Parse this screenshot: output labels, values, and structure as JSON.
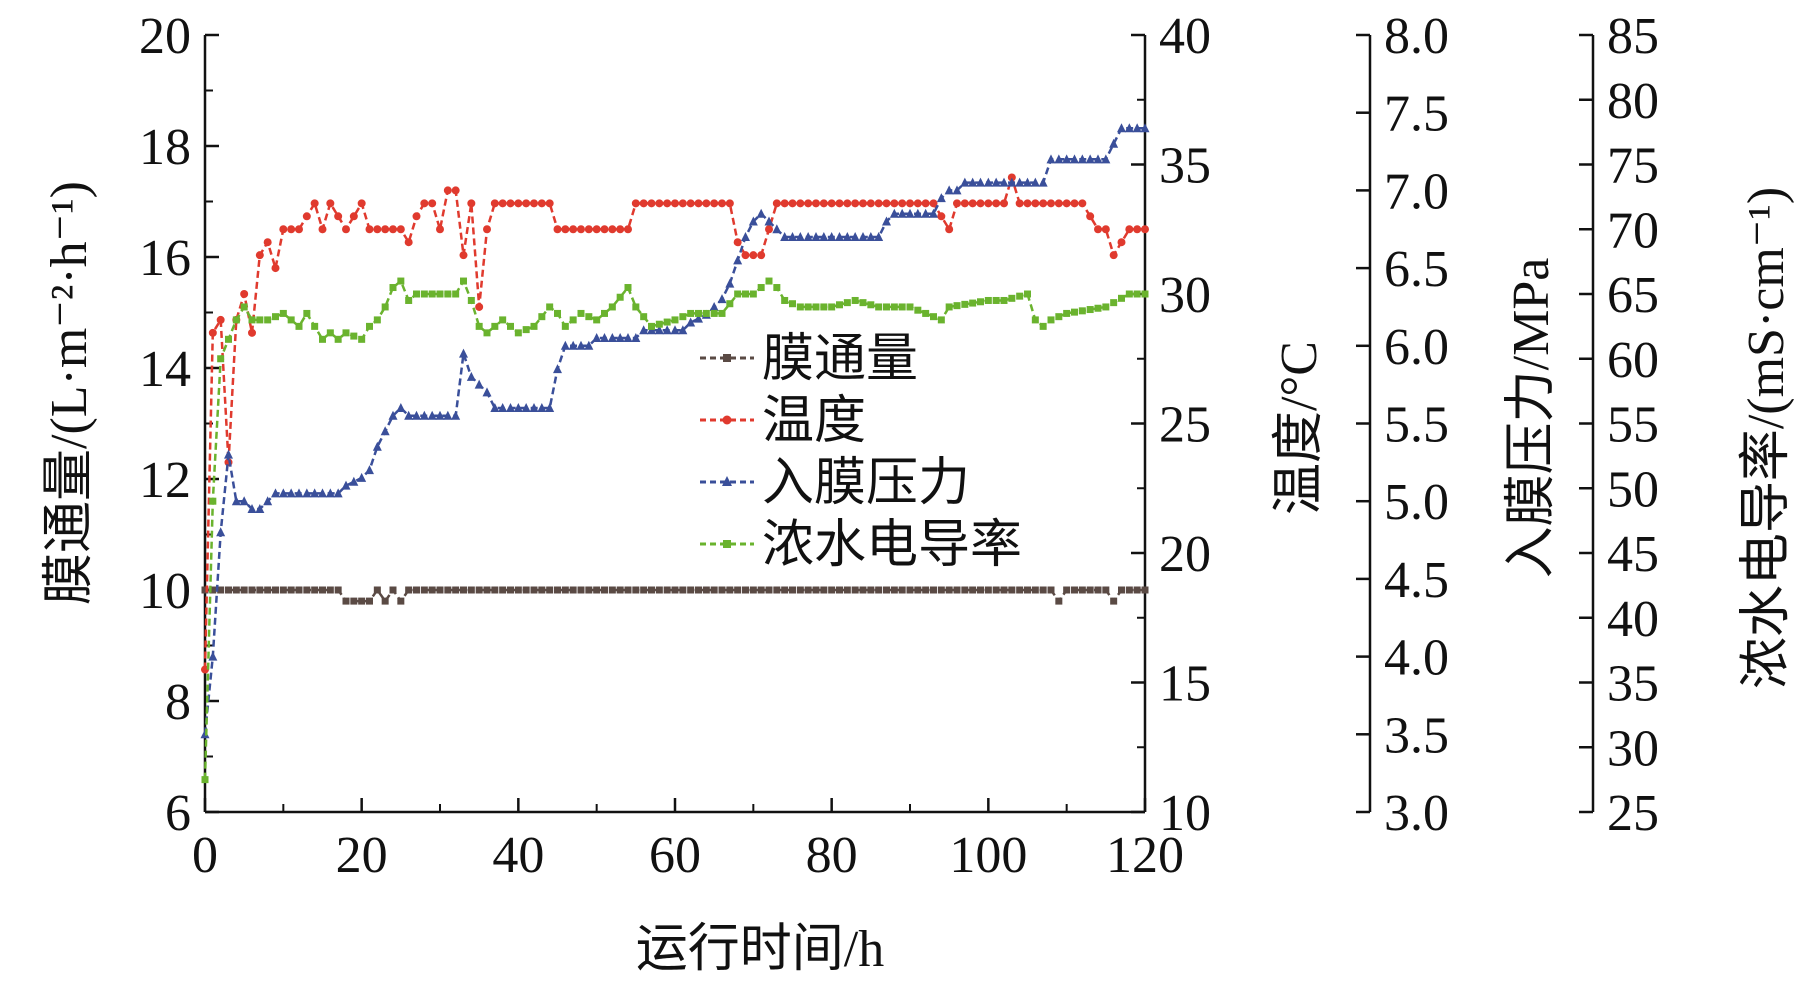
{
  "chart_data": {
    "type": "line",
    "xlabel": "运行时间/h",
    "xlim": [
      0,
      120
    ],
    "xticks": [
      0,
      20,
      40,
      60,
      80,
      100,
      120
    ],
    "axes": [
      {
        "id": "flux",
        "label": "膜通量/(L·m⁻²·h⁻¹)",
        "range": [
          6,
          20
        ],
        "ticks": [
          6,
          8,
          10,
          12,
          14,
          16,
          18,
          20
        ]
      },
      {
        "id": "temp",
        "label": "温度/°C",
        "range": [
          10,
          40
        ],
        "ticks": [
          10,
          15,
          20,
          25,
          30,
          35,
          40
        ]
      },
      {
        "id": "pressure",
        "label": "入膜压力/MPa",
        "range": [
          3.0,
          8.0
        ],
        "ticks": [
          "3.0",
          "3.5",
          "4.0",
          "4.5",
          "5.0",
          "5.5",
          "6.0",
          "6.5",
          "7.0",
          "7.5",
          "8.0"
        ]
      },
      {
        "id": "cond",
        "label": "浓水电导率/(mS·cm⁻¹)",
        "range": [
          25,
          85
        ],
        "ticks": [
          25,
          30,
          35,
          40,
          45,
          50,
          55,
          60,
          65,
          70,
          75,
          80,
          85
        ]
      }
    ],
    "legend_position": "center",
    "series": [
      {
        "name": "膜通量",
        "axis": "flux",
        "color": "#5a4a44",
        "marker": "square",
        "x": [
          0,
          17,
          18,
          21,
          22,
          23,
          24,
          25,
          26,
          108,
          109,
          110,
          115,
          116,
          117,
          120
        ],
        "y": [
          10,
          10,
          9.8,
          9.8,
          10,
          9.8,
          10,
          9.8,
          10,
          10,
          9.8,
          10,
          10,
          9.8,
          10,
          10
        ]
      },
      {
        "name": "温度",
        "axis": "temp",
        "color": "#e03a2e",
        "marker": "circle",
        "x": [
          0,
          1,
          2,
          3,
          4,
          5,
          6,
          7,
          8,
          9,
          10,
          12,
          13,
          14,
          15,
          16,
          17,
          18,
          20,
          21,
          25,
          26,
          27,
          28,
          29,
          30,
          31,
          32,
          33,
          34,
          35,
          36,
          37,
          38,
          44,
          45,
          54,
          55,
          67,
          68,
          69,
          70,
          71,
          72,
          73,
          92,
          93,
          94,
          95,
          96,
          102,
          103,
          104,
          105,
          106,
          112,
          113,
          114,
          115,
          116,
          117,
          118,
          120
        ],
        "y": [
          15.5,
          28.5,
          29,
          23.5,
          29,
          30,
          28.5,
          31.5,
          32,
          31,
          32.5,
          32.5,
          33,
          33.5,
          32.5,
          33.5,
          33,
          32.5,
          33.5,
          32.5,
          32.5,
          32,
          33,
          33.5,
          33.5,
          32.5,
          34,
          34,
          31.5,
          33.5,
          29.5,
          32.5,
          33.5,
          33.5,
          33.5,
          32.5,
          32.5,
          33.5,
          33.5,
          32,
          31.5,
          31.5,
          31.5,
          32.5,
          33.5,
          33.5,
          33.5,
          33,
          32.5,
          33.5,
          33.5,
          34.5,
          33.5,
          33.5,
          33.5,
          33.5,
          33,
          32.5,
          32.5,
          31.5,
          32,
          32.5,
          32.5
        ]
      },
      {
        "name": "入膜压力",
        "axis": "pressure",
        "color": "#3a4f9a",
        "marker": "triangle",
        "x": [
          0,
          1,
          2,
          3,
          4,
          5,
          6,
          7,
          8,
          9,
          10,
          17,
          18,
          20,
          21,
          22,
          23,
          24,
          25,
          26,
          32,
          33,
          34,
          35,
          36,
          37,
          44,
          45,
          46,
          49,
          50,
          55,
          56,
          60,
          61,
          62,
          64,
          65,
          66,
          67,
          68,
          69,
          70,
          71,
          72,
          73,
          74,
          75,
          86,
          87,
          88,
          93,
          94,
          95,
          96,
          97,
          98,
          107,
          108,
          110,
          111,
          115,
          116,
          117,
          120
        ],
        "y": [
          3.5,
          4.0,
          4.8,
          5.3,
          5.0,
          5.0,
          4.95,
          4.95,
          5.0,
          5.05,
          5.05,
          5.05,
          5.1,
          5.15,
          5.2,
          5.35,
          5.45,
          5.55,
          5.6,
          5.55,
          5.55,
          5.95,
          5.8,
          5.75,
          5.7,
          5.6,
          5.6,
          5.85,
          6.0,
          6.0,
          6.05,
          6.05,
          6.1,
          6.1,
          6.1,
          6.15,
          6.2,
          6.25,
          6.3,
          6.4,
          6.55,
          6.7,
          6.8,
          6.85,
          6.8,
          6.75,
          6.7,
          6.7,
          6.7,
          6.8,
          6.85,
          6.85,
          6.95,
          7.0,
          7.0,
          7.05,
          7.05,
          7.05,
          7.2,
          7.2,
          7.2,
          7.2,
          7.3,
          7.4,
          7.4
        ]
      },
      {
        "name": "浓水电导率",
        "axis": "cond",
        "color": "#6ab32e",
        "marker": "square",
        "x": [
          0,
          1,
          2,
          3,
          4,
          5,
          6,
          8,
          10,
          12,
          13,
          15,
          16,
          17,
          18,
          20,
          21,
          22,
          23,
          24,
          25,
          26,
          27,
          28,
          32,
          33,
          34,
          35,
          36,
          38,
          40,
          42,
          44,
          45,
          46,
          48,
          50,
          52,
          54,
          55,
          57,
          60,
          62,
          66,
          68,
          70,
          72,
          73,
          74,
          76,
          80,
          83,
          86,
          90,
          92,
          94,
          95,
          100,
          102,
          105,
          106,
          107,
          108,
          110,
          115,
          118,
          120
        ],
        "y": [
          27.5,
          49,
          60,
          61.5,
          63,
          64,
          63,
          63,
          63.5,
          62.5,
          63.5,
          61.5,
          62,
          61.5,
          62,
          61.5,
          62.5,
          63,
          64,
          65.5,
          66,
          64.5,
          65,
          65,
          65,
          66,
          64.5,
          62.5,
          62,
          63,
          62,
          62.5,
          64,
          63.5,
          62.5,
          63.5,
          63,
          64,
          65.5,
          64,
          62.5,
          63,
          63.5,
          63.5,
          65,
          65,
          66,
          65.5,
          64.5,
          64,
          64,
          64.5,
          64,
          64,
          63.5,
          63,
          64,
          64.5,
          64.5,
          65,
          63,
          62.5,
          63,
          63.5,
          64,
          65,
          65
        ]
      }
    ]
  }
}
